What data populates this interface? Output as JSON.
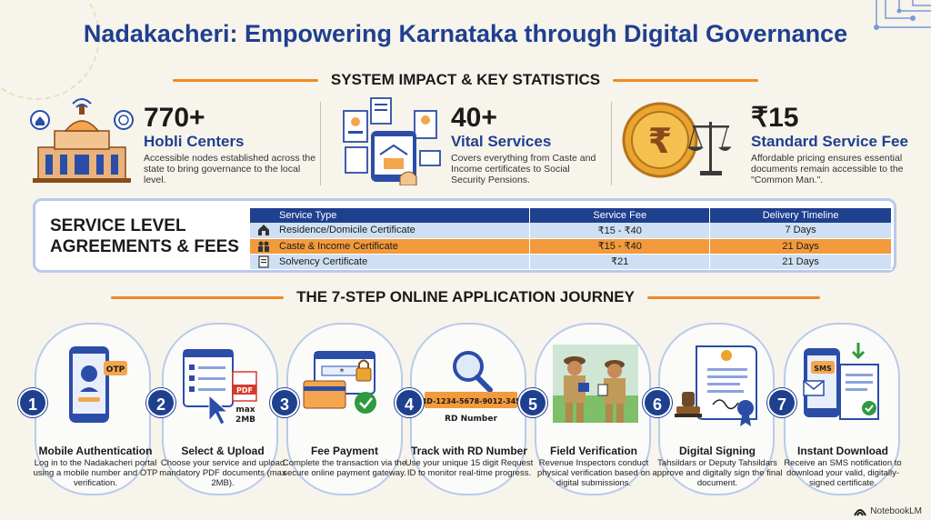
{
  "title": "Nadakacheri: Empowering Karnataka through Digital Governance",
  "impact_heading": "SYSTEM IMPACT & KEY STATISTICS",
  "stats": [
    {
      "value": "770+",
      "label": "Hobli Centers",
      "desc": "Accessible nodes established across the state to bring governance to the local level."
    },
    {
      "value": "40+",
      "label": "Vital Services",
      "desc": "Covers everything from Caste and Income certificates to Social Security Pensions."
    },
    {
      "value": "₹15",
      "label": "Standard Service Fee",
      "desc": "Affordable pricing ensures essential documents remain accessible to the \"Common Man.\"."
    }
  ],
  "sla": {
    "title_line1": "SERVICE LEVEL",
    "title_line2": "AGREEMENTS & FEES",
    "headers": [
      "Service Type",
      "Service Fee",
      "Delivery Timeline"
    ],
    "rows": [
      {
        "service": "Residence/Domicile Certificate",
        "fee": "₹15 - ₹40",
        "timeline": "7 Days",
        "icon": "house-icon"
      },
      {
        "service": "Caste & Income Certificate",
        "fee": "₹15 - ₹40",
        "timeline": "21 Days",
        "icon": "family-icon"
      },
      {
        "service": "Solvency Certificate",
        "fee": "₹21",
        "timeline": "21 Days",
        "icon": "document-icon"
      }
    ]
  },
  "journey_heading": "THE 7-STEP ONLINE APPLICATION JOURNEY",
  "steps": [
    {
      "num": "1",
      "title": "Mobile Authentication",
      "desc": "Log in to the Nadakacheri portal using a mobile number and OTP verification.",
      "icon": "phone-otp-icon",
      "art": {
        "otp": "OTP"
      }
    },
    {
      "num": "2",
      "title": "Select & Upload",
      "desc": "Choose your service and upload mandatory PDF documents (max 2MB).",
      "icon": "form-upload-icon",
      "art": {
        "pdf": "PDF",
        "max": "max",
        "size": "2MB"
      }
    },
    {
      "num": "3",
      "title": "Fee Payment",
      "desc": "Complete the transaction via the secure online payment gateway.",
      "icon": "card-payment-icon",
      "art": {
        "mask": "*"
      }
    },
    {
      "num": "4",
      "title": "Track with RD Number",
      "desc": "Use your unique 15 digit Request ID to monitor real-time progress.",
      "icon": "magnifier-icon",
      "art": {
        "rd_value": "RD-1234-5678-9012-345",
        "rd_label": "RD Number"
      }
    },
    {
      "num": "5",
      "title": "Field Verification",
      "desc": "Revenue Inspectors conduct physical verification based on digital submissions.",
      "icon": "inspectors-icon",
      "art": {}
    },
    {
      "num": "6",
      "title": "Digital Signing",
      "desc": "Tahsildars or Deputy Tahsildars approve and digitally sign the final document.",
      "icon": "signed-certificate-icon",
      "art": {}
    },
    {
      "num": "7",
      "title": "Instant Download",
      "desc": "Receive an SMS notification to download your valid, digitally-signed certificate.",
      "icon": "sms-download-icon",
      "art": {
        "sms": "SMS"
      }
    }
  ],
  "brand": "NotebookLM",
  "colors": {
    "navy": "#1f3f8f",
    "orange": "#f08a24",
    "light_blue": "#cfe0f4"
  }
}
